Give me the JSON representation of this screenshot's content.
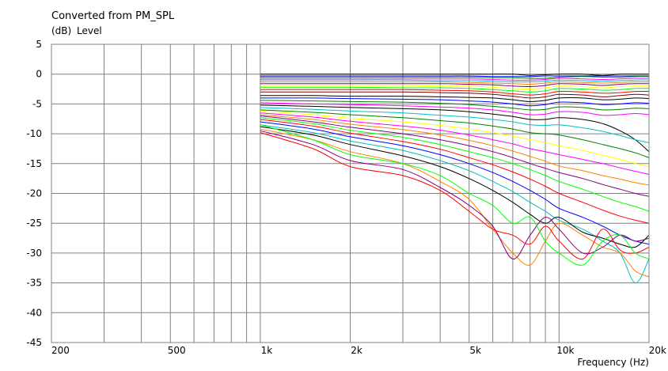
{
  "chart_data": {
    "type": "line",
    "title": "Converted from PM_SPL",
    "ylabel_unit": "(dB)",
    "ylabel": "Level",
    "xlabel": "Frequency (Hz)",
    "x_scale": "log",
    "xlim": [
      200,
      20000
    ],
    "ylim": [
      -45,
      5
    ],
    "x_ticks": [
      {
        "value": 200,
        "label": "200"
      },
      {
        "value": 500,
        "label": "500"
      },
      {
        "value": 1000,
        "label": "1k"
      },
      {
        "value": 2000,
        "label": "2k"
      },
      {
        "value": 5000,
        "label": "5k"
      },
      {
        "value": 10000,
        "label": "10k"
      },
      {
        "value": 20000,
        "label": "20k"
      }
    ],
    "y_ticks": [
      {
        "value": 5,
        "label": "5"
      },
      {
        "value": 0,
        "label": "0"
      },
      {
        "value": -5,
        "label": "-5"
      },
      {
        "value": -10,
        "label": "-10"
      },
      {
        "value": -15,
        "label": "-15"
      },
      {
        "value": -20,
        "label": "-20"
      },
      {
        "value": -25,
        "label": "-25"
      },
      {
        "value": -30,
        "label": "-30"
      },
      {
        "value": -35,
        "label": "-35"
      },
      {
        "value": -40,
        "label": "-40"
      },
      {
        "value": -45,
        "label": "-45"
      }
    ],
    "grid": true,
    "x": [
      1000,
      1500,
      2000,
      3000,
      4000,
      5000,
      6000,
      7000,
      8000,
      9000,
      10000,
      12000,
      14000,
      16000,
      18000,
      20000
    ],
    "series": [
      {
        "color": "#000000",
        "values": [
          0,
          0,
          0,
          0,
          0,
          0,
          0,
          0,
          -0.2,
          -0.1,
          0,
          0,
          -0.2,
          0,
          0,
          0
        ]
      },
      {
        "color": "#0000ff",
        "values": [
          -0.3,
          -0.3,
          -0.3,
          -0.3,
          -0.3,
          -0.3,
          -0.4,
          -0.4,
          -0.4,
          -0.3,
          -0.3,
          -0.3,
          -0.3,
          -0.3,
          -0.3,
          -0.3
        ]
      },
      {
        "color": "#008000",
        "values": [
          -0.5,
          -0.5,
          -0.5,
          -0.5,
          -0.5,
          -0.5,
          -0.6,
          -0.6,
          -0.7,
          -0.7,
          -0.5,
          -0.4,
          -0.5,
          -0.5,
          -0.4,
          -0.4
        ]
      },
      {
        "color": "#ff00ff",
        "values": [
          -0.8,
          -0.8,
          -0.8,
          -0.8,
          -0.8,
          -0.8,
          -0.9,
          -1,
          -1,
          -0.9,
          -0.7,
          -0.8,
          -0.9,
          -0.8,
          -0.7,
          -0.7
        ]
      },
      {
        "color": "#00c0c0",
        "values": [
          -1,
          -1,
          -1,
          -1,
          -1.1,
          -1.1,
          -1.2,
          -1.3,
          -1.3,
          -1.2,
          -1,
          -1.1,
          -1.2,
          -1.1,
          -1,
          -1
        ]
      },
      {
        "color": "#ff8000",
        "values": [
          -1.3,
          -1.3,
          -1.3,
          -1.3,
          -1.3,
          -1.4,
          -1.5,
          -1.6,
          -1.7,
          -1.5,
          -1.3,
          -1.4,
          -1.5,
          -1.4,
          -1.3,
          -1.3
        ]
      },
      {
        "color": "#800080",
        "values": [
          -1.6,
          -1.6,
          -1.6,
          -1.6,
          -1.6,
          -1.7,
          -1.8,
          -2,
          -2.1,
          -1.9,
          -1.6,
          -1.7,
          -1.9,
          -1.7,
          -1.6,
          -1.6
        ]
      },
      {
        "color": "#ffff00",
        "values": [
          -1.9,
          -1.9,
          -1.9,
          -1.9,
          -2,
          -2,
          -2.2,
          -2.4,
          -2.5,
          -2.3,
          -2,
          -2.1,
          -2.3,
          -2.1,
          -2,
          -2
        ]
      },
      {
        "color": "#00ff00",
        "values": [
          -2.2,
          -2.2,
          -2.2,
          -2.3,
          -2.3,
          -2.4,
          -2.6,
          -2.8,
          -3,
          -2.8,
          -2.4,
          -2.5,
          -2.7,
          -2.6,
          -2.4,
          -2.4
        ]
      },
      {
        "color": "#ff0000",
        "values": [
          -2.6,
          -2.6,
          -2.6,
          -2.6,
          -2.7,
          -2.8,
          -3,
          -3.3,
          -3.5,
          -3.3,
          -2.9,
          -3,
          -3.2,
          -3.1,
          -2.9,
          -2.9
        ]
      },
      {
        "color": "#800000",
        "values": [
          -3,
          -3,
          -3,
          -3,
          -3.1,
          -3.2,
          -3.4,
          -3.7,
          -4,
          -3.8,
          -3.4,
          -3.5,
          -3.8,
          -3.6,
          -3.4,
          -3.5
        ]
      },
      {
        "color": "#000000",
        "values": [
          -3.6,
          -3.6,
          -3.7,
          -3.7,
          -3.8,
          -3.9,
          -4,
          -4.3,
          -4.6,
          -4.4,
          -4,
          -4,
          -4.3,
          -4.2,
          -4,
          -4.1
        ]
      },
      {
        "color": "#0000ff",
        "values": [
          -4,
          -4,
          -4.1,
          -4.2,
          -4.3,
          -4.5,
          -4.7,
          -5,
          -5.3,
          -5.1,
          -4.7,
          -4.8,
          -5.1,
          -5,
          -4.8,
          -4.9
        ]
      },
      {
        "color": "#008000",
        "values": [
          -4.4,
          -4.5,
          -4.6,
          -4.7,
          -4.9,
          -5.1,
          -5.4,
          -5.7,
          -6,
          -5.9,
          -5.5,
          -5.6,
          -6,
          -5.9,
          -5.7,
          -5.8
        ]
      },
      {
        "color": "#ff00ff",
        "values": [
          -4.8,
          -5,
          -5.1,
          -5.3,
          -5.5,
          -5.7,
          -6,
          -6.4,
          -6.8,
          -6.7,
          -6.3,
          -6.4,
          -6.9,
          -6.8,
          -6.6,
          -6.8
        ]
      },
      {
        "color": "#000000",
        "values": [
          -5.2,
          -5.4,
          -5.6,
          -5.8,
          -6,
          -6.3,
          -6.7,
          -7.1,
          -7.6,
          -7.6,
          -7.3,
          -7.6,
          -8.3,
          -9.5,
          -11,
          -13
        ]
      },
      {
        "color": "#00c0c0",
        "values": [
          -5.6,
          -5.9,
          -6.2,
          -6.5,
          -6.9,
          -7.2,
          -7.6,
          -8,
          -8.5,
          -8.6,
          -8.5,
          -9,
          -9.6,
          -10.3,
          -11,
          -11.5
        ]
      },
      {
        "color": "#008000",
        "values": [
          -6,
          -6.4,
          -6.8,
          -7.3,
          -7.8,
          -8.2,
          -8.7,
          -9.2,
          -9.8,
          -10,
          -10.2,
          -11,
          -11.8,
          -12.5,
          -13.2,
          -14
        ]
      },
      {
        "color": "#ffff00",
        "values": [
          -6.2,
          -6.8,
          -7.4,
          -8,
          -8.6,
          -9.2,
          -9.8,
          -10.4,
          -11,
          -11.5,
          -12,
          -12.8,
          -13.6,
          -14.3,
          -15,
          -15.5
        ]
      },
      {
        "color": "#ff00ff",
        "values": [
          -6.5,
          -7.2,
          -7.9,
          -8.7,
          -9.4,
          -10.2,
          -11,
          -11.7,
          -12.5,
          -13,
          -13.5,
          -14.3,
          -15,
          -15.7,
          -16.3,
          -16.8
        ]
      },
      {
        "color": "#ff8000",
        "values": [
          -6.8,
          -7.6,
          -8.4,
          -9.3,
          -10.2,
          -11.1,
          -12,
          -12.9,
          -13.8,
          -14.6,
          -15.4,
          -16.2,
          -17,
          -17.6,
          -18.2,
          -18.6
        ]
      },
      {
        "color": "#800080",
        "values": [
          -7,
          -8,
          -8.9,
          -10,
          -11,
          -12,
          -13,
          -14,
          -15,
          -15.8,
          -16.5,
          -17.5,
          -18.5,
          -19.3,
          -20,
          -20.5
        ]
      },
      {
        "color": "#00ff00",
        "values": [
          -7.3,
          -8.3,
          -9.4,
          -10.6,
          -11.8,
          -13,
          -14,
          -15,
          -16,
          -17,
          -18,
          -19.3,
          -20.5,
          -21.5,
          -22.2,
          -23
        ]
      },
      {
        "color": "#ff0000",
        "values": [
          -7.6,
          -8.7,
          -9.9,
          -11.3,
          -12.6,
          -14,
          -15.2,
          -16.4,
          -17.6,
          -18.8,
          -20,
          -21.5,
          -22.8,
          -23.8,
          -24.5,
          -25
        ]
      },
      {
        "color": "#0000ff",
        "values": [
          -8,
          -9.2,
          -10.5,
          -12,
          -13.5,
          -15,
          -16.5,
          -18,
          -19.5,
          -21,
          -22.5,
          -24,
          -25.5,
          -27,
          -28,
          -28.5
        ]
      },
      {
        "color": "#00c0c0",
        "values": [
          -8.5,
          -9.8,
          -11.2,
          -12.8,
          -14.5,
          -16.2,
          -18,
          -19.7,
          -21.5,
          -23,
          -24.5,
          -26,
          -28,
          -30,
          -35,
          -31
        ]
      },
      {
        "color": "#000000",
        "values": [
          -8.8,
          -10.2,
          -11.8,
          -13.7,
          -15.5,
          -17.5,
          -19.5,
          -21.5,
          -23.5,
          -25,
          -24,
          -26.5,
          -27.5,
          -28.5,
          -29,
          -27
        ]
      },
      {
        "color": "#ff8000",
        "values": [
          -9.2,
          -11,
          -13,
          -15,
          -18,
          -21,
          -26,
          -30,
          -32,
          -28,
          -25,
          -27,
          -29,
          -30,
          -33,
          -34
        ]
      },
      {
        "color": "#800080",
        "values": [
          -9.5,
          -11.8,
          -14.5,
          -16,
          -19,
          -22,
          -25.5,
          -31,
          -27,
          -24,
          -26,
          -30,
          -29,
          -27,
          -28,
          -27.5
        ]
      },
      {
        "color": "#ff0000",
        "values": [
          -9.8,
          -12.5,
          -15.5,
          -17,
          -19.5,
          -23,
          -26,
          -27,
          -28.5,
          -25.5,
          -28,
          -31,
          -26,
          -29.5,
          -30,
          -29
        ]
      },
      {
        "color": "#00ff00",
        "values": [
          -8.5,
          -11,
          -13.5,
          -15,
          -17,
          -20,
          -22,
          -25,
          -24,
          -28,
          -30,
          -32,
          -28,
          -27,
          -30,
          -31
        ]
      }
    ]
  }
}
